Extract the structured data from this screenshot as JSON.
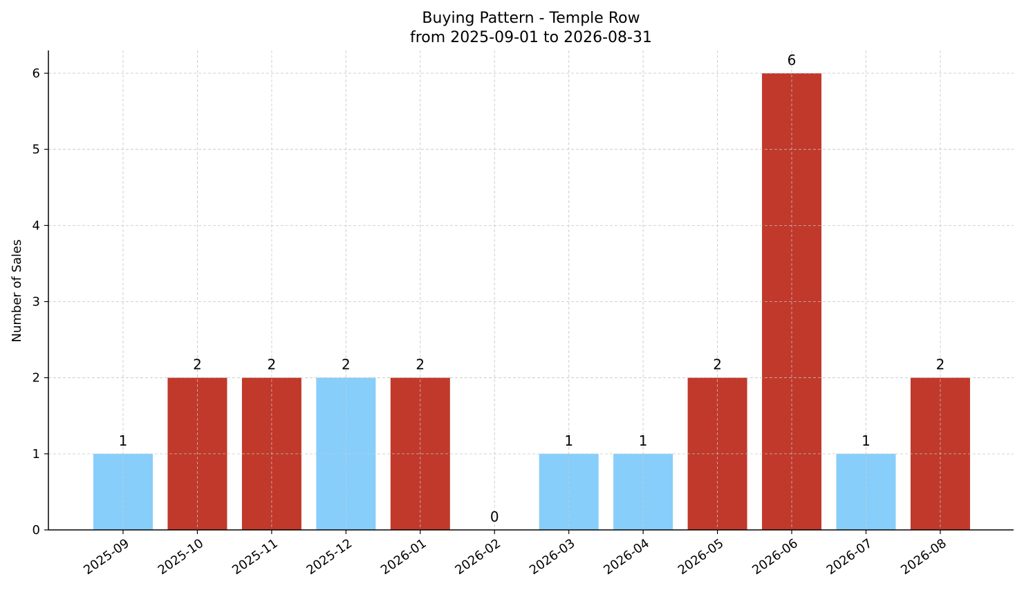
{
  "chart_data": {
    "type": "bar",
    "title": "Buying Pattern - Temple Row",
    "subtitle": "from 2025-09-01 to 2026-08-31",
    "xlabel": "",
    "ylabel": "Number of Sales",
    "categories": [
      "2025-09",
      "2025-10",
      "2025-11",
      "2025-12",
      "2026-01",
      "2026-02",
      "2026-03",
      "2026-04",
      "2026-05",
      "2026-06",
      "2026-07",
      "2026-08"
    ],
    "values": [
      1,
      2,
      2,
      2,
      2,
      0,
      1,
      1,
      2,
      6,
      1,
      2
    ],
    "bar_colors": [
      "#87CEFA",
      "#C0392B",
      "#C0392B",
      "#87CEFA",
      "#C0392B",
      "#87CEFA",
      "#87CEFA",
      "#87CEFA",
      "#C0392B",
      "#C0392B",
      "#87CEFA",
      "#C0392B"
    ],
    "ylim": [
      0,
      6.3
    ],
    "yticks": [
      0,
      1,
      2,
      3,
      4,
      5,
      6
    ],
    "grid": true,
    "data_labels": true,
    "colors": {
      "light": "#87CEFA",
      "dark": "#C0392B",
      "grid": "#cccccc",
      "axis": "#000000"
    }
  }
}
